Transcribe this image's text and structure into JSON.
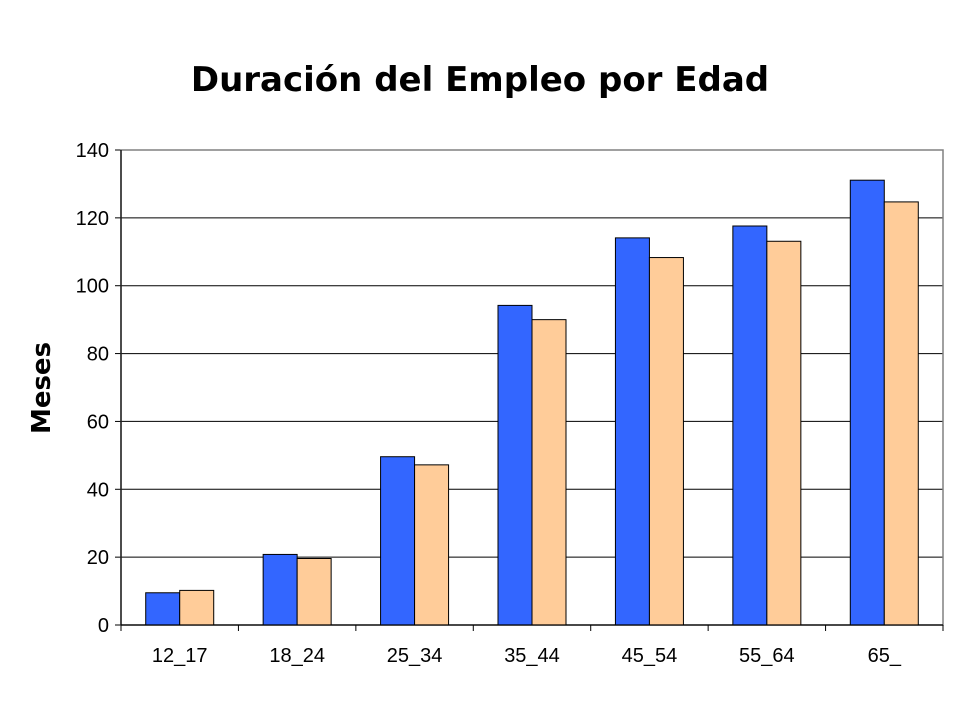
{
  "chart_data": {
    "type": "bar",
    "title": "Duración del Empleo por Edad",
    "xlabel": "",
    "ylabel": "Meses",
    "categories": [
      "12_17",
      "18_24",
      "25_34",
      "35_44",
      "45_54",
      "55_64",
      "65_"
    ],
    "series": [
      {
        "values": [
          9.5,
          20.8,
          49.6,
          94.2,
          114.1,
          117.6,
          131.1
        ],
        "color": "#3366ff"
      },
      {
        "values": [
          10.2,
          19.6,
          47.2,
          90.0,
          108.3,
          113.1,
          124.7
        ],
        "color": "#ffcc99"
      }
    ],
    "ylim": [
      0,
      140
    ],
    "yticks": [
      0,
      20,
      40,
      60,
      80,
      100,
      120,
      140
    ],
    "grid": true,
    "legend": "none"
  }
}
